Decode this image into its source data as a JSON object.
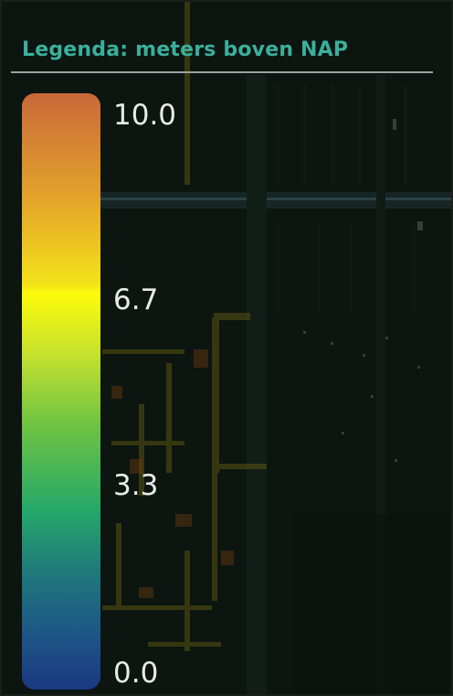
{
  "legend": {
    "title": "Legenda: meters boven NAP",
    "ticks": [
      "10.0",
      "6.7",
      "3.3",
      "0.0"
    ],
    "range": [
      0.0,
      10.0
    ],
    "colormap_stops": [
      "#1a3882",
      "#1f7a7a",
      "#25a86a",
      "#6dc244",
      "#fdfb0a",
      "#e5a52a",
      "#c8683a"
    ]
  },
  "colors": {
    "title": "#3ab09c",
    "tick_text": "#eaeaea",
    "rule": "#9aa2a2",
    "map_background": "#0c1510"
  }
}
